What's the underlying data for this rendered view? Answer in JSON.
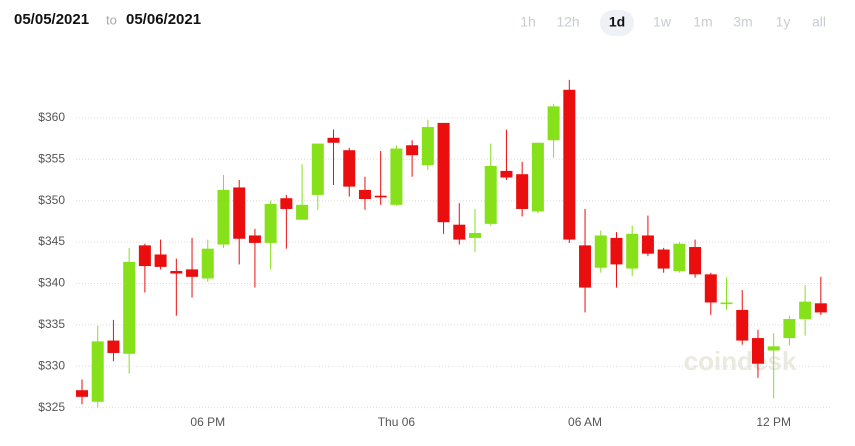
{
  "header": {
    "from": "05/05/2021",
    "sep": "to",
    "to": "05/06/2021",
    "buttons": [
      "1h",
      "12h",
      "1d",
      "1w",
      "1m",
      "3m",
      "1y",
      "all"
    ],
    "selected": 2
  },
  "chart_data": {
    "type": "candlestick",
    "watermark": "coindesk",
    "categories": [
      null,
      null,
      null,
      null,
      null,
      null,
      null,
      null,
      "06 PM",
      null,
      null,
      null,
      null,
      null,
      null,
      null,
      null,
      null,
      null,
      null,
      "Thu 06",
      null,
      null,
      null,
      null,
      null,
      null,
      null,
      null,
      null,
      null,
      null,
      "06 AM",
      null,
      null,
      null,
      null,
      null,
      null,
      null,
      null,
      null,
      null,
      null,
      "12 PM",
      null,
      null,
      null
    ],
    "open": [
      327.1,
      325.7,
      333.1,
      331.5,
      344.6,
      343.5,
      341.5,
      341.7,
      340.6,
      344.7,
      351.6,
      345.8,
      344.9,
      350.3,
      347.7,
      350.7,
      357.6,
      356.1,
      351.3,
      350.6,
      349.5,
      356.7,
      354.3,
      359.4,
      347.1,
      345.5,
      347.2,
      353.6,
      353.2,
      348.7,
      357.3,
      363.4,
      344.6,
      341.9,
      345.5,
      341.8,
      345.8,
      344.1,
      341.5,
      344.4,
      341.1,
      337.5,
      336.8,
      333.4,
      331.9,
      333.4,
      335.7,
      337.6
    ],
    "high": [
      328.4,
      334.9,
      335.6,
      344.3,
      344.8,
      345.3,
      343.0,
      345.5,
      345.3,
      353.1,
      352.5,
      346.6,
      350.0,
      350.7,
      354.4,
      356.9,
      358.6,
      356.4,
      352.9,
      356.0,
      356.7,
      357.3,
      359.8,
      359.4,
      349.7,
      349.0,
      356.9,
      358.6,
      354.7,
      357.0,
      361.7,
      364.6,
      349.0,
      346.4,
      346.2,
      347.0,
      348.2,
      344.3,
      345.0,
      345.3,
      341.3,
      340.7,
      339.2,
      334.4,
      334.0,
      336.1,
      339.8,
      340.8
    ],
    "low": [
      325.4,
      325.0,
      330.6,
      329.1,
      338.9,
      341.7,
      336.1,
      338.3,
      340.2,
      344.3,
      342.3,
      339.5,
      341.7,
      344.2,
      347.7,
      348.9,
      351.9,
      350.5,
      348.9,
      349.5,
      349.4,
      352.9,
      353.7,
      346.0,
      344.7,
      343.8,
      347.0,
      352.5,
      348.1,
      348.5,
      355.2,
      344.9,
      336.5,
      341.3,
      339.5,
      340.9,
      343.3,
      341.3,
      341.3,
      340.7,
      336.2,
      336.8,
      332.6,
      328.6,
      326.1,
      332.5,
      333.7,
      336.2
    ],
    "close": [
      326.3,
      333.0,
      331.6,
      342.6,
      342.1,
      342.0,
      341.2,
      340.8,
      344.2,
      351.3,
      345.4,
      344.9,
      349.6,
      349.0,
      349.5,
      356.9,
      357.0,
      351.7,
      350.2,
      350.4,
      356.3,
      355.5,
      358.9,
      347.4,
      345.3,
      346.1,
      354.2,
      352.8,
      349.0,
      357.0,
      361.4,
      345.3,
      339.5,
      345.8,
      342.3,
      346.0,
      343.6,
      341.8,
      344.8,
      341.1,
      337.7,
      337.7,
      333.1,
      330.3,
      332.4,
      335.7,
      337.8,
      336.5
    ],
    "up_color": "#86e11b",
    "down_color": "#ea0e0e",
    "ylim": [
      323.5,
      367
    ],
    "yticks": [
      {
        "value": 325,
        "label": "$325"
      },
      {
        "value": 330,
        "label": "$330"
      },
      {
        "value": 335,
        "label": "$335"
      },
      {
        "value": 340,
        "label": "$340"
      },
      {
        "value": 345,
        "label": "$345"
      },
      {
        "value": 350,
        "label": "$350"
      },
      {
        "value": 355,
        "label": "$355"
      },
      {
        "value": 360,
        "label": "$360"
      }
    ],
    "grid": true
  }
}
